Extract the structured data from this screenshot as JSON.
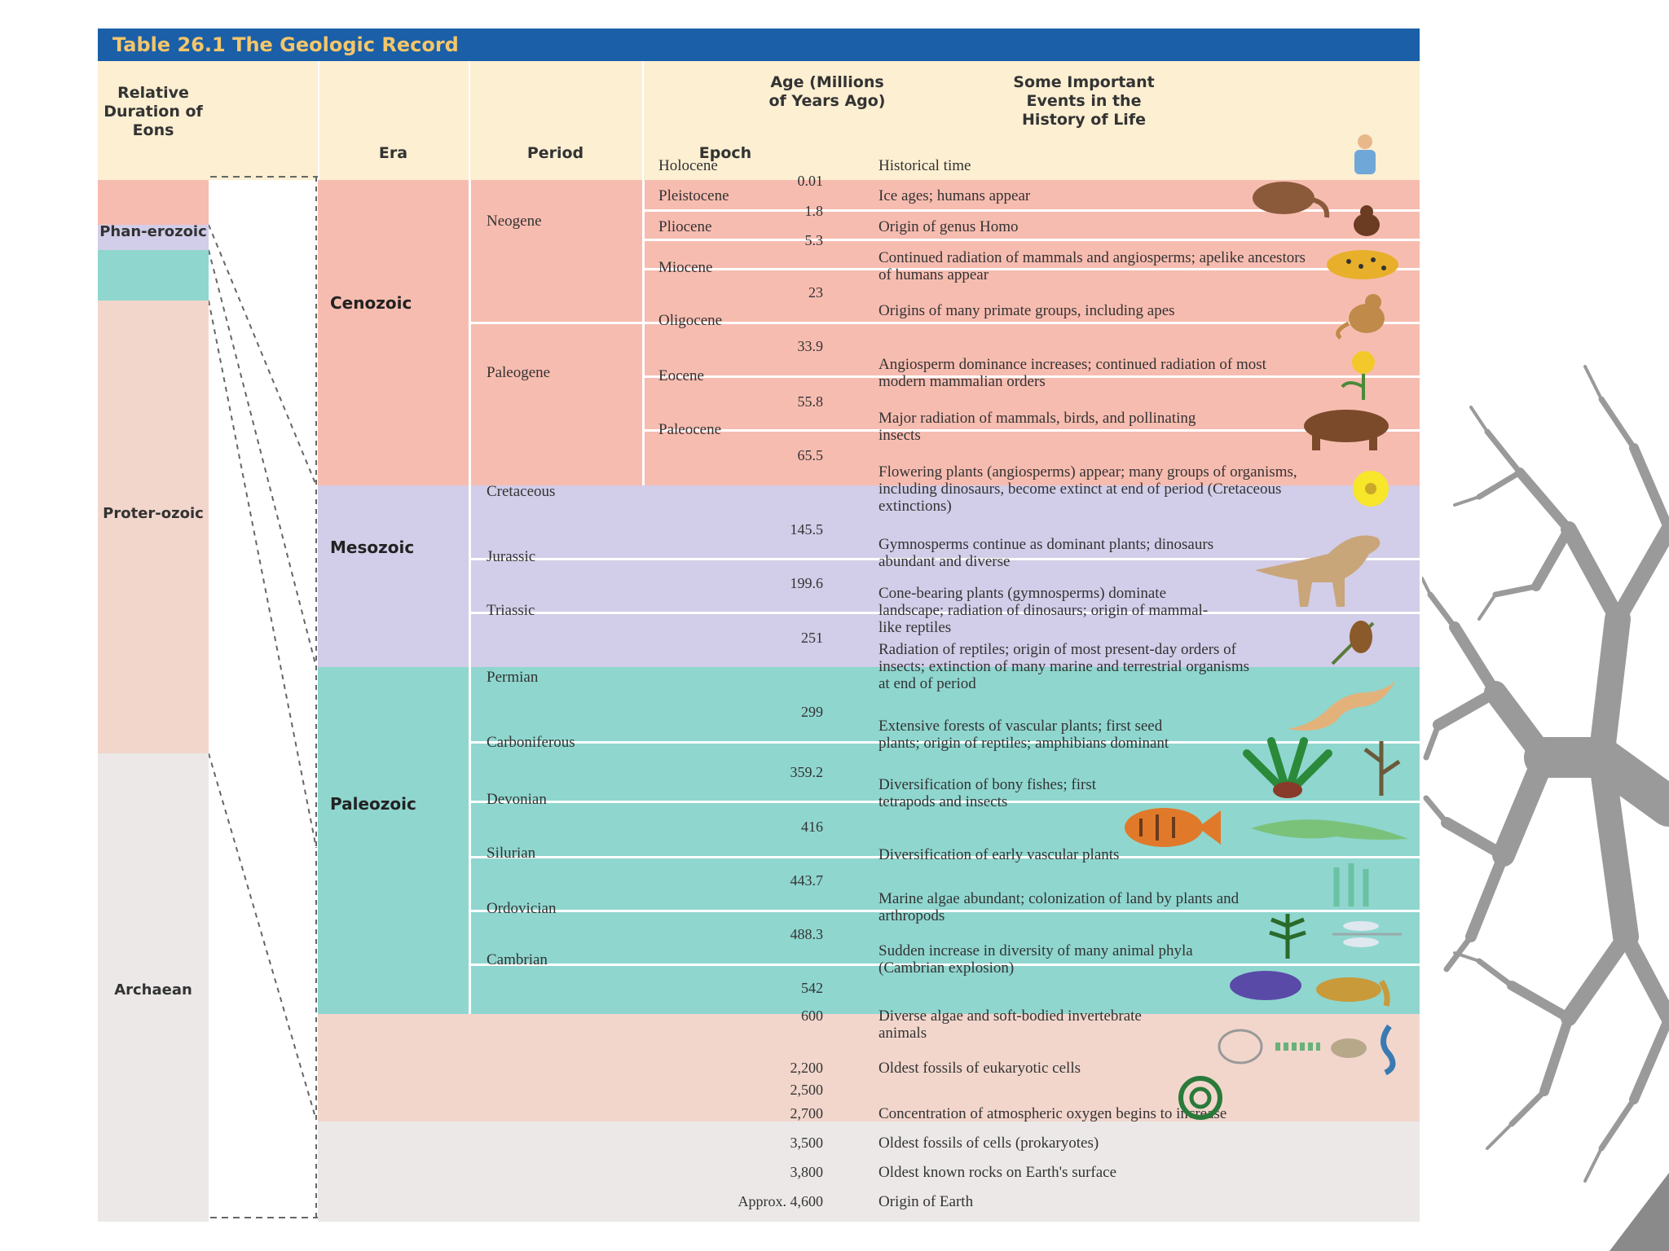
{
  "title": "Table 26.1 The Geologic Record",
  "headers": {
    "eons": "Relative Duration of Eons",
    "era": "Era",
    "period": "Period",
    "epoch": "Epoch",
    "age": "Age (Millions of Years Ago)",
    "events": "Some Important Events in the History of Life"
  },
  "eons": [
    "Phan-erozoic",
    "Proter-ozoic",
    "Archaean"
  ],
  "eras": [
    "Cenozoic",
    "Mesozoic",
    "Paleozoic"
  ],
  "cenozoic": {
    "periods": [
      "Neogene",
      "Paleogene"
    ],
    "epochs": [
      "Holocene",
      "Pleistocene",
      "Pliocene",
      "Miocene",
      "Oligocene",
      "Eocene",
      "Paleocene"
    ]
  },
  "mesozoic_periods": [
    "Cretaceous",
    "Jurassic",
    "Triassic"
  ],
  "paleozoic_periods": [
    "Permian",
    "Carboniferous",
    "Devonian",
    "Silurian",
    "Ordovician",
    "Cambrian"
  ],
  "ages": [
    "0.01",
    "1.8",
    "5.3",
    "23",
    "33.9",
    "55.8",
    "65.5",
    "145.5",
    "199.6",
    "251",
    "299",
    "359.2",
    "416",
    "443.7",
    "488.3",
    "542",
    "600",
    "2,200",
    "2,500",
    "2,700",
    "3,500",
    "3,800",
    "Approx. 4,600"
  ],
  "events": [
    "Historical time",
    "Ice ages; humans appear",
    "Origin of genus Homo",
    "Continued radiation of mammals and angiosperms; apelike ancestors of humans appear",
    "Origins of many primate groups, including apes",
    "Angiosperm dominance increases; continued radiation of most modern mammalian orders",
    "Major radiation of mammals, birds, and pollinating insects",
    "Flowering plants (angiosperms) appear; many groups of organisms, including dinosaurs, become extinct at end of period (Cretaceous extinctions)",
    "Gymnosperms continue as dominant plants; dinosaurs abundant and diverse",
    "Cone-bearing plants (gymnosperms) dominate landscape; radiation of dinosaurs; origin of mammal-like reptiles",
    "Radiation of reptiles; origin of most present-day orders of insects; extinction of many marine and terrestrial organisms at end of period",
    "Extensive forests of vascular plants; first seed plants; origin of reptiles; amphibians dominant",
    "Diversification of bony fishes; first tetrapods and insects",
    "Diversification of early vascular plants",
    "Marine algae abundant; colonization of land by plants and arthropods",
    "Sudden increase in diversity of many animal phyla (Cambrian explosion)",
    "Diverse algae and soft-bodied invertebrate animals",
    "Oldest fossils of eukaryotic cells",
    "Concentration of atmospheric oxygen begins to increase",
    "Oldest fossils of cells (prokaryotes)",
    "Oldest known rocks on Earth's surface",
    "Origin of Earth"
  ],
  "colors": {
    "title_bar": "#1a5fa8",
    "title_text": "#f4c66a",
    "header_bg": "#fcefd2",
    "cenozoic": "#f7bcb0",
    "mesozoic": "#d2cde8",
    "paleozoic": "#8fd6cf",
    "proterozoic": "#f2d6cc",
    "archaean": "#ece8e8"
  },
  "icons": [
    "person-icon",
    "mammoth-icon",
    "hominid-icon",
    "leopard-icon",
    "monkey-icon",
    "flower-icon",
    "bear-icon",
    "yellow-flower-icon",
    "dinosaur-icon",
    "pine-cone-icon",
    "lizard-icon",
    "fern-icon",
    "fish-icon",
    "amphibian-icon",
    "vascular-plant-icon",
    "dragonfly-icon",
    "trilobite-icon",
    "soft-body-icon",
    "eukaryote-cell-icon",
    "fractal-tree-icon"
  ]
}
